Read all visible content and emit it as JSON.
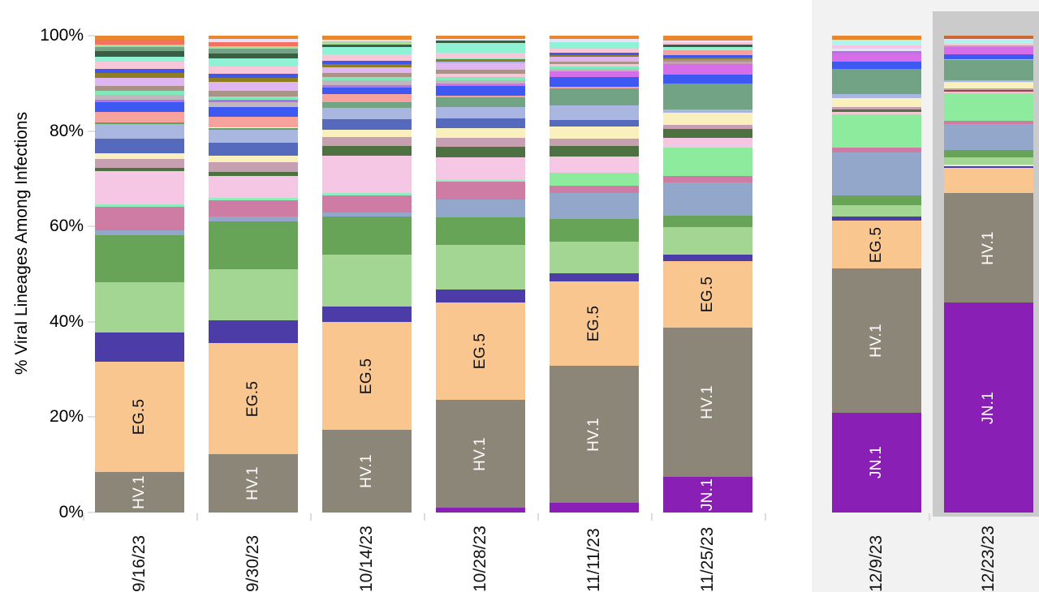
{
  "chart_data": {
    "type": "bar",
    "subtype": "stacked-percent-columns",
    "title": "",
    "ylabel": "% Viral Lineages Among Infections",
    "xlabel": "",
    "ylim": [
      0,
      100
    ],
    "grid": false,
    "legend_position": "none (labels drawn inside large segments)",
    "y_ticks": [
      {
        "label": "0%",
        "value": 0
      },
      {
        "label": "20%",
        "value": 20
      },
      {
        "label": "40%",
        "value": 40
      },
      {
        "label": "60%",
        "value": 60
      },
      {
        "label": "80%",
        "value": 80
      },
      {
        "label": "100%",
        "value": 100
      }
    ],
    "categories": [
      "9/16/23",
      "9/30/23",
      "10/14/23",
      "10/28/23",
      "11/11/23",
      "11/25/23",
      "12/9/23",
      "12/23/23"
    ],
    "labeled_lineages": [
      "EG.5",
      "HV.1",
      "JN.1"
    ],
    "colors": {
      "label_dark": "#111111",
      "label_light": "#ffffff",
      "nowcast_panel": "#f2f2f2",
      "latest_backdrop": "#cbcbcb"
    },
    "palette": {
      "JN1": "#8a1fb5",
      "HV1": "#8b8677",
      "EG5": "#fac68f",
      "indigo": "#4b3ca7",
      "ltgreen": "#a3d593",
      "green": "#67a458",
      "bluegray": "#92a7c9",
      "darkpink": "#ce7ca4",
      "mint": "#8fedbe",
      "ltpink": "#f5c7e5",
      "darkgreen": "#4d7140",
      "mauve": "#c69fb0",
      "cream": "#faf0be",
      "darkblue": "#5569bd",
      "periwinkle": "#a9b6df",
      "greenline": "#5fa35b",
      "salmon": "#f7a29c",
      "royalblue": "#3e59f2",
      "violet": "#b273e8",
      "graymauve": "#c0b7be",
      "seafoam": "#84e9ba",
      "taupe": "#aa9287",
      "thistle": "#dfb5f2",
      "olive": "#8e7d23",
      "royal2": "#4156ea",
      "pink2": "#f7c7d9",
      "aqua": "#90f2d4",
      "forest": "#3b5d43",
      "seagreen": "#72a384",
      "ltgreen2": "#acdc9c",
      "salmonred": "#f3715d",
      "orangeline": "#e8872c",
      "orchid": "#d66eea",
      "brightgreen": "#8ceb9c",
      "cyan": "#aff5ed",
      "lavwhite": "#e7e2f8",
      "darkred": "#9e4444",
      "orangedark": "#c96a33"
    },
    "bars": [
      {
        "date": "9/16/23",
        "nowcast": false,
        "segments": [
          [
            "HV1",
            8.5,
            "HV.1",
            "#ffffff"
          ],
          [
            "EG5",
            23.2,
            "EG.5",
            "#111111"
          ],
          [
            "indigo",
            6.1
          ],
          [
            "ltgreen",
            10.5
          ],
          [
            "green",
            9.9
          ],
          [
            "bluegray",
            1.0
          ],
          [
            "darkpink",
            5.0
          ],
          [
            "mint",
            0.4
          ],
          [
            "ltpink",
            7.0
          ],
          [
            "darkgreen",
            0.7
          ],
          [
            "mauve",
            1.9
          ],
          [
            "cream",
            1.1
          ],
          [
            "darkblue",
            3.1
          ],
          [
            "periwinkle",
            3.1
          ],
          [
            "greenline",
            0.3
          ],
          [
            "salmon",
            2.3
          ],
          [
            "royalblue",
            2.0
          ],
          [
            "violet",
            0.5
          ],
          [
            "graymauve",
            1.0
          ],
          [
            "seafoam",
            0.8
          ],
          [
            "taupe",
            1.1
          ],
          [
            "thistle",
            1.7
          ],
          [
            "olive",
            0.9
          ],
          [
            "royal2",
            0.9
          ],
          [
            "pink2",
            1.6
          ],
          [
            "aqua",
            1.0
          ],
          [
            "forest",
            1.1
          ],
          [
            "seagreen",
            0.9
          ],
          [
            "ltgreen2",
            0.6
          ],
          [
            "salmonred",
            0.9
          ],
          [
            "orangeline",
            0.9
          ]
        ]
      },
      {
        "date": "9/30/23",
        "nowcast": false,
        "segments": [
          [
            "HV1",
            12.2,
            "HV.1",
            "#ffffff"
          ],
          [
            "EG5",
            23.3,
            "EG.5",
            "#111111"
          ],
          [
            "indigo",
            4.8
          ],
          [
            "ltgreen",
            10.7
          ],
          [
            "green",
            10.0
          ],
          [
            "bluegray",
            1.0
          ],
          [
            "darkpink",
            3.5
          ],
          [
            "mint",
            0.5
          ],
          [
            "ltpink",
            4.5
          ],
          [
            "darkgreen",
            1.0
          ],
          [
            "mauve",
            2.0
          ],
          [
            "cream",
            1.3
          ],
          [
            "darkblue",
            2.7
          ],
          [
            "periwinkle",
            2.7
          ],
          [
            "greenline",
            0.5
          ],
          [
            "salmon",
            2.3
          ],
          [
            "royalblue",
            2.0
          ],
          [
            "graymauve",
            1.0
          ],
          [
            "violet",
            0.5
          ],
          [
            "seafoam",
            0.8
          ],
          [
            "taupe",
            1.2
          ],
          [
            "thistle",
            1.8
          ],
          [
            "olive",
            0.9
          ],
          [
            "royal2",
            0.8
          ],
          [
            "pink2",
            1.5
          ],
          [
            "aqua",
            1.8
          ],
          [
            "forest",
            1.0
          ],
          [
            "seagreen",
            0.9
          ],
          [
            "ltgreen2",
            0.6
          ],
          [
            "salmonred",
            0.8
          ],
          [
            "lavwhite",
            0.7
          ],
          [
            "orangeline",
            0.7
          ]
        ]
      },
      {
        "date": "10/14/23",
        "nowcast": false,
        "segments": [
          [
            "HV1",
            17.3,
            "HV.1",
            "#ffffff"
          ],
          [
            "EG5",
            22.7,
            "EG.5",
            "#111111"
          ],
          [
            "indigo",
            3.2
          ],
          [
            "ltgreen",
            10.8
          ],
          [
            "green",
            8.0
          ],
          [
            "bluegray",
            1.0
          ],
          [
            "darkpink",
            3.5
          ],
          [
            "mint",
            0.5
          ],
          [
            "ltpink",
            7.8
          ],
          [
            "darkgreen",
            2.0
          ],
          [
            "mauve",
            1.9
          ],
          [
            "cream",
            1.6
          ],
          [
            "darkblue",
            2.2
          ],
          [
            "periwinkle",
            2.3
          ],
          [
            "seagreen",
            1.2
          ],
          [
            "salmon",
            1.7
          ],
          [
            "royalblue",
            1.5
          ],
          [
            "violet",
            0.4
          ],
          [
            "graymauve",
            1.0
          ],
          [
            "seafoam",
            0.7
          ],
          [
            "taupe",
            0.9
          ],
          [
            "thistle",
            1.2
          ],
          [
            "olive",
            0.7
          ],
          [
            "royal2",
            0.6
          ],
          [
            "pink2",
            1.4
          ],
          [
            "aqua",
            1.6
          ],
          [
            "forest",
            0.5
          ],
          [
            "ltgreen2",
            0.6
          ],
          [
            "lavwhite",
            0.4
          ],
          [
            "orangeline",
            0.8
          ]
        ]
      },
      {
        "date": "10/28/23",
        "nowcast": false,
        "segments": [
          [
            "JN1",
            1.0
          ],
          [
            "HV1",
            22.6,
            "HV.1",
            "#ffffff"
          ],
          [
            "EG5",
            20.4,
            "EG.5",
            "#111111"
          ],
          [
            "indigo",
            2.8
          ],
          [
            "ltgreen",
            9.3
          ],
          [
            "green",
            5.8
          ],
          [
            "bluegray",
            3.7
          ],
          [
            "darkpink",
            3.8
          ],
          [
            "mint",
            0.4
          ],
          [
            "ltpink",
            4.7
          ],
          [
            "darkgreen",
            2.2
          ],
          [
            "mauve",
            1.8
          ],
          [
            "cream",
            2.1
          ],
          [
            "darkblue",
            2.1
          ],
          [
            "periwinkle",
            2.3
          ],
          [
            "seagreen",
            2.0
          ],
          [
            "salmon",
            0.5
          ],
          [
            "royalblue",
            1.9
          ],
          [
            "orchid",
            0.5
          ],
          [
            "graymauve",
            0.7
          ],
          [
            "seafoam",
            0.7
          ],
          [
            "pink2",
            0.7
          ],
          [
            "taupe",
            0.8
          ],
          [
            "thistle",
            1.4
          ],
          [
            "periwinkle",
            0.4
          ],
          [
            "olive",
            0.4
          ],
          [
            "mint",
            0.3
          ],
          [
            "pink2",
            1.2
          ],
          [
            "aqua",
            2.0
          ],
          [
            "forest",
            0.4
          ],
          [
            "lavwhite",
            0.4
          ],
          [
            "orangeline",
            0.7
          ]
        ]
      },
      {
        "date": "11/11/23",
        "nowcast": false,
        "segments": [
          [
            "JN1",
            2.0
          ],
          [
            "HV1",
            28.8,
            "HV.1",
            "#ffffff"
          ],
          [
            "EG5",
            17.6,
            "EG.5",
            "#111111"
          ],
          [
            "indigo",
            1.8
          ],
          [
            "ltgreen",
            6.6
          ],
          [
            "green",
            4.7
          ],
          [
            "bluegray",
            5.5
          ],
          [
            "darkpink",
            1.5
          ],
          [
            "brightgreen",
            2.8
          ],
          [
            "ltpink",
            3.3
          ],
          [
            "darkgreen",
            2.2
          ],
          [
            "mauve",
            1.6
          ],
          [
            "cream",
            2.6
          ],
          [
            "darkblue",
            1.3
          ],
          [
            "periwinkle",
            3.1
          ],
          [
            "seagreen",
            3.5
          ],
          [
            "salmon",
            0.4
          ],
          [
            "royalblue",
            2.0
          ],
          [
            "orchid",
            1.2
          ],
          [
            "graymauve",
            0.5
          ],
          [
            "seafoam",
            0.5
          ],
          [
            "pink2",
            0.6
          ],
          [
            "taupe",
            0.5
          ],
          [
            "thistle",
            1.0
          ],
          [
            "olive",
            0.4
          ],
          [
            "royal2",
            0.5
          ],
          [
            "pink2",
            0.7
          ],
          [
            "aqua",
            1.4
          ],
          [
            "lavwhite",
            0.7
          ],
          [
            "orangeline",
            0.7
          ]
        ]
      },
      {
        "date": "11/25/23",
        "nowcast": false,
        "segments": [
          [
            "JN1",
            7.5,
            "JN.1",
            "#ffffff"
          ],
          [
            "HV1",
            31.3,
            "HV.1",
            "#ffffff"
          ],
          [
            "EG5",
            14.0,
            "EG.5",
            "#111111"
          ],
          [
            "indigo",
            1.3
          ],
          [
            "ltgreen",
            5.7
          ],
          [
            "green",
            2.5
          ],
          [
            "bluegray",
            7.0
          ],
          [
            "darkpink",
            1.2
          ],
          [
            "brightgreen",
            6.0
          ],
          [
            "ltpink",
            2.0
          ],
          [
            "darkgreen",
            1.9
          ],
          [
            "mauve",
            0.9
          ],
          [
            "cream",
            2.6
          ],
          [
            "periwinkle",
            0.7
          ],
          [
            "seagreen",
            5.4
          ],
          [
            "royalblue",
            1.9
          ],
          [
            "orchid",
            2.1
          ],
          [
            "mauve",
            0.5
          ],
          [
            "taupe",
            0.5
          ],
          [
            "olive",
            0.4
          ],
          [
            "royal2",
            0.5
          ],
          [
            "salmon",
            1.0
          ],
          [
            "aqua",
            0.8
          ],
          [
            "forest",
            0.5
          ],
          [
            "pink2",
            0.4
          ],
          [
            "lavwhite",
            0.4
          ],
          [
            "orangeline",
            1.0
          ]
        ]
      },
      {
        "date": "12/9/23",
        "nowcast": true,
        "segments": [
          [
            "JN1",
            21.0,
            "JN.1",
            "#ffffff"
          ],
          [
            "HV1",
            30.2,
            "HV.1",
            "#ffffff"
          ],
          [
            "EG5",
            10.0,
            "EG.5",
            "#111111"
          ],
          [
            "indigo",
            0.8
          ],
          [
            "ltgreen",
            2.5
          ],
          [
            "green",
            2.0
          ],
          [
            "bluegray",
            9.0
          ],
          [
            "darkpink",
            1.0
          ],
          [
            "brightgreen",
            7.0
          ],
          [
            "pink2",
            0.5
          ],
          [
            "darkgreen",
            0.6
          ],
          [
            "mauve",
            0.5
          ],
          [
            "cream",
            1.8
          ],
          [
            "periwinkle",
            0.8
          ],
          [
            "seagreen",
            5.3
          ],
          [
            "royalblue",
            1.5
          ],
          [
            "orchid",
            1.8
          ],
          [
            "violet",
            0.4
          ],
          [
            "lavwhite",
            0.5
          ],
          [
            "ltpink",
            0.7
          ],
          [
            "cyan",
            1.2
          ],
          [
            "orangeline",
            0.9
          ]
        ]
      },
      {
        "date": "12/23/23",
        "nowcast": true,
        "latest": true,
        "segments": [
          [
            "JN1",
            44.0,
            "JN.1",
            "#ffffff"
          ],
          [
            "HV1",
            23.0,
            "HV.1",
            "#ffffff"
          ],
          [
            "EG5",
            5.2
          ],
          [
            "indigo",
            0.5
          ],
          [
            "lavwhite",
            0.2
          ],
          [
            "ltgreen",
            1.6
          ],
          [
            "green",
            1.5
          ],
          [
            "bluegray",
            5.5
          ],
          [
            "darkpink",
            0.7
          ],
          [
            "brightgreen",
            5.7
          ],
          [
            "pink2",
            0.4
          ],
          [
            "darkred",
            0.3
          ],
          [
            "mauve",
            0.4
          ],
          [
            "cream",
            1.1
          ],
          [
            "lavwhite",
            0.2
          ],
          [
            "periwinkle",
            0.4
          ],
          [
            "seagreen",
            4.2
          ],
          [
            "salmon",
            0.2
          ],
          [
            "royalblue",
            1.0
          ],
          [
            "orchid",
            1.5
          ],
          [
            "mauve",
            0.3
          ],
          [
            "pink2",
            0.4
          ],
          [
            "cyan",
            0.8
          ],
          [
            "lavwhite",
            0.2
          ],
          [
            "orangedark",
            0.7
          ]
        ]
      }
    ]
  }
}
